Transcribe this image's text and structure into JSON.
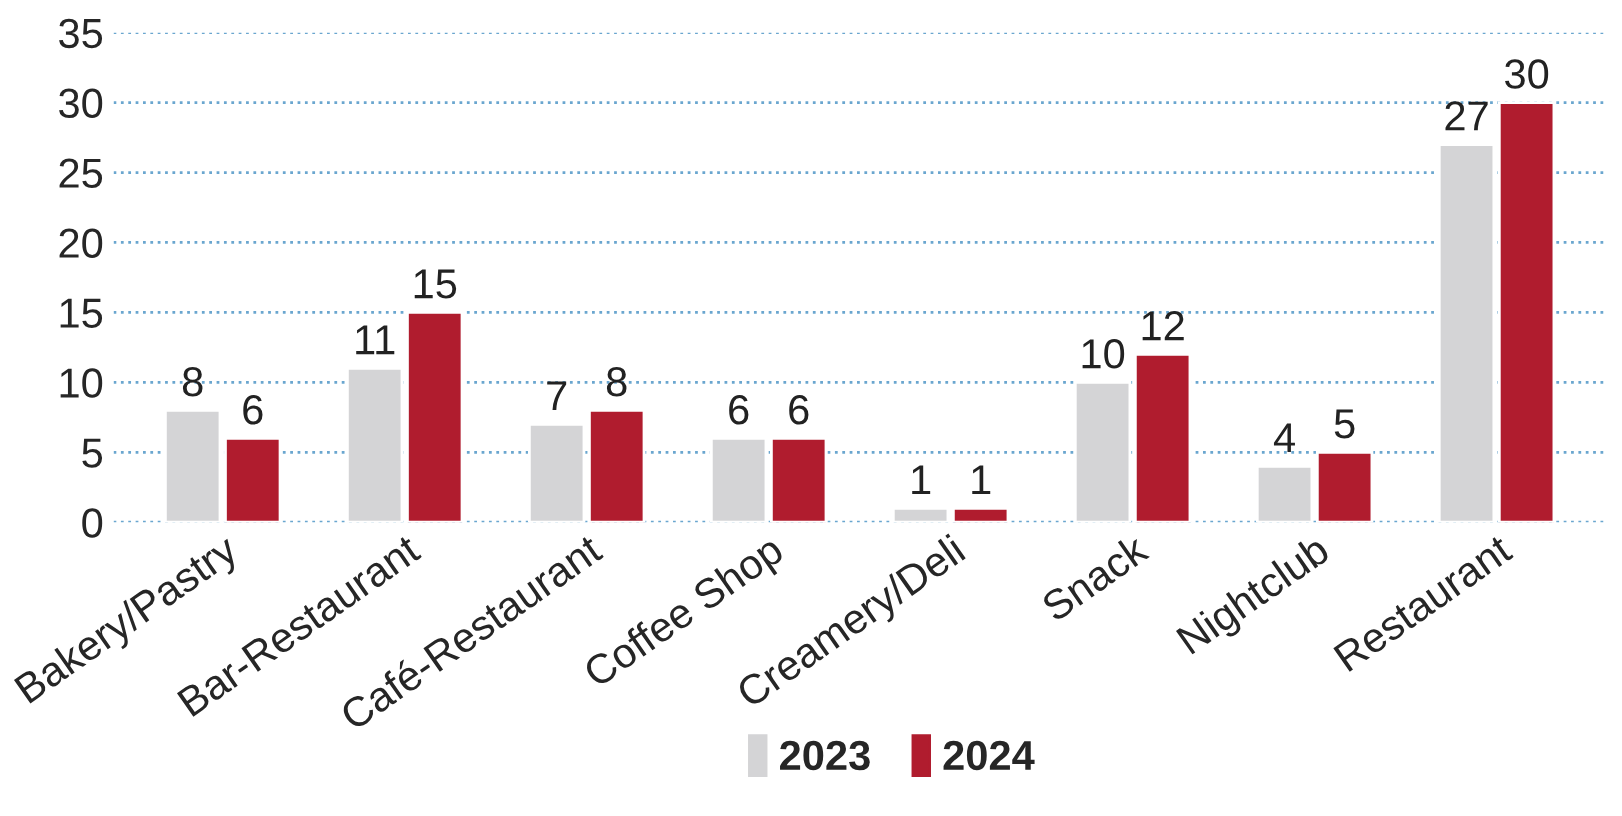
{
  "chart_data": {
    "type": "bar",
    "categories": [
      "Bakery/Pastry",
      "Bar-Restaurant",
      "Café-Restaurant",
      "Coffee Shop",
      "Creamery/Deli",
      "Snack",
      "Nightclub",
      "Restaurant"
    ],
    "series": [
      {
        "name": "2023",
        "color": "#d4d4d6",
        "values": [
          8,
          11,
          7,
          6,
          1,
          10,
          4,
          27
        ]
      },
      {
        "name": "2024",
        "color": "#b01c2e",
        "values": [
          6,
          15,
          8,
          6,
          1,
          12,
          5,
          30
        ]
      }
    ],
    "ylim": [
      0,
      35
    ],
    "yticks": [
      0,
      5,
      10,
      15,
      20,
      25,
      30,
      35
    ],
    "grid": "y",
    "legend": "bottom",
    "data_labels": true
  }
}
